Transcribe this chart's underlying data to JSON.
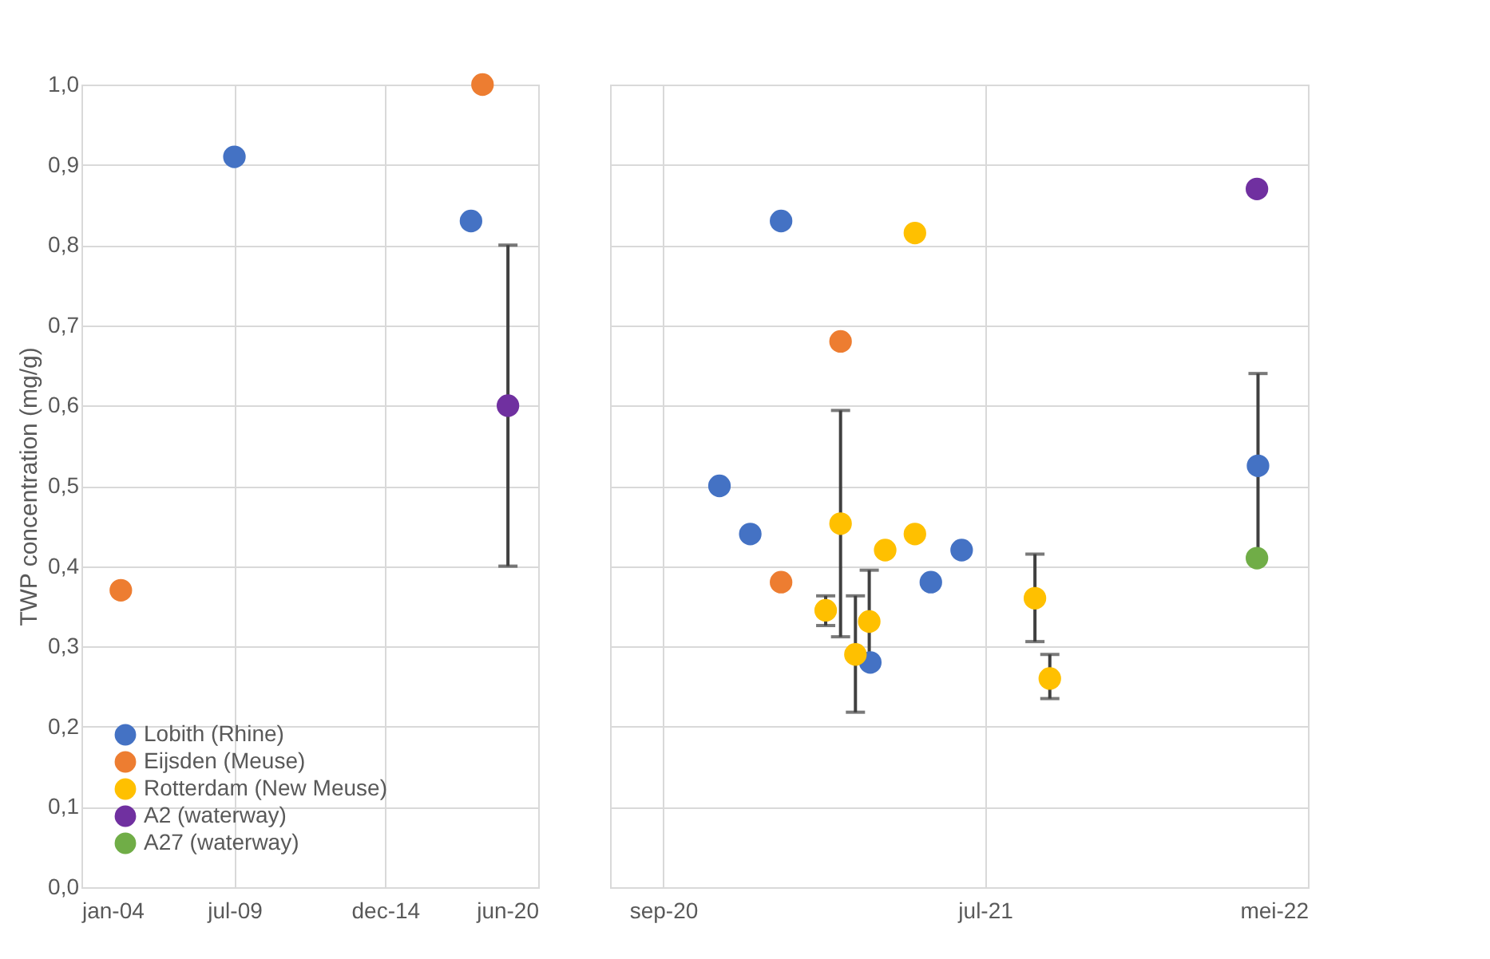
{
  "chart_data": [
    {
      "type": "scatter",
      "ylabel": "TWP concentration (mg/g)",
      "xlim": [
        "2004-01-01",
        "2020-06-01"
      ],
      "xticks": [
        {
          "value": "2004-01-01",
          "label": "jan-04"
        },
        {
          "value": "2009-07-01",
          "label": "jul-09"
        },
        {
          "value": "2014-12-01",
          "label": "dec-14"
        },
        {
          "value": "2020-06-01",
          "label": "jun-20"
        }
      ],
      "ylim": [
        0,
        1
      ],
      "yticks": [
        {
          "value": 0,
          "label": "0,0"
        },
        {
          "value": 0.1,
          "label": "0,1"
        },
        {
          "value": 0.2,
          "label": "0,2"
        },
        {
          "value": 0.3,
          "label": "0,3"
        },
        {
          "value": 0.4,
          "label": "0,4"
        },
        {
          "value": 0.5,
          "label": "0,5"
        },
        {
          "value": 0.6,
          "label": "0,6"
        },
        {
          "value": 0.7,
          "label": "0,7"
        },
        {
          "value": 0.8,
          "label": "0,8"
        },
        {
          "value": 0.9,
          "label": "0,9"
        },
        {
          "value": 1,
          "label": "1,0"
        }
      ],
      "grid": true,
      "legend": "bottom left",
      "marker": "circle",
      "series": [
        {
          "name": "Lobith (Rhine)",
          "color": "#4472c4",
          "x": [
            "2009-07-01",
            "2018-01-01"
          ],
          "values": [
            0.91,
            0.83
          ]
        },
        {
          "name": "Eijsden (Meuse)",
          "color": "#ed7d31",
          "x": [
            "2005-06-01",
            "2018-06-01"
          ],
          "values": [
            0.37,
            1.0
          ]
        },
        {
          "name": "Rotterdam (New Meuse)",
          "color": "#ffc000"
        },
        {
          "name": "A2 (waterway)",
          "color": "#7030a0",
          "x": [
            "2019-05-01"
          ],
          "values": [
            0.6
          ],
          "errors": [
            [
              0.4,
              0.8
            ]
          ]
        },
        {
          "name": "A27 (waterway)",
          "color": "#70ad47"
        }
      ]
    },
    {
      "type": "scatter",
      "xlim": [
        "2020-07-13",
        "2022-05-01"
      ],
      "xticks": [
        {
          "value": "2020-09-01",
          "label": "sep-20"
        },
        {
          "value": "2021-07-01",
          "label": "jul-21"
        },
        {
          "value": "2022-05-01",
          "label": "mei-22"
        }
      ],
      "ylim": [
        0,
        1
      ],
      "yticks": [
        0,
        0.1,
        0.2,
        0.3,
        0.4,
        0.5,
        0.6,
        0.7,
        0.8,
        0.9,
        1
      ],
      "tick_labels": "x",
      "grid": true,
      "marker": "circle",
      "series": [
        {
          "color": "#4472c4",
          "x": [
            "2020-10-24",
            "2020-11-22",
            "2020-12-21",
            "2021-03-15",
            "2021-05-11",
            "2021-06-09",
            "2022-03-15"
          ],
          "values": [
            0.5,
            0.44,
            0.83,
            0.28,
            0.38,
            0.42,
            0.525
          ],
          "errors": [
            null,
            null,
            null,
            null,
            null,
            null,
            0.115
          ]
        },
        {
          "color": "#ed7d31",
          "x": [
            "2020-12-21",
            "2021-02-15"
          ],
          "values": [
            0.38,
            0.68
          ]
        },
        {
          "color": "#ffc000",
          "x": [
            "2021-02-01",
            "2021-02-15",
            "2021-03-01",
            "2021-03-14",
            "2021-03-29",
            "2021-04-26",
            "2021-04-26",
            "2021-08-17",
            "2021-08-31"
          ],
          "values": [
            0.345,
            0.453,
            0.29,
            0.331,
            0.42,
            0.44,
            0.815,
            0.36,
            0.26
          ],
          "errors": [
            [
              0.326,
              0.363
            ],
            [
              0.312,
              0.594
            ],
            [
              0.218,
              0.363
            ],
            [
              0.28,
              0.395
            ],
            null,
            null,
            null,
            [
              0.306,
              0.415
            ],
            [
              0.235,
              0.29
            ]
          ]
        },
        {
          "color": "#7030a0",
          "x": [
            "2022-03-14"
          ],
          "values": [
            0.87
          ]
        },
        {
          "color": "#70ad47",
          "x": [
            "2022-03-14"
          ],
          "values": [
            0.41
          ]
        }
      ]
    }
  ]
}
